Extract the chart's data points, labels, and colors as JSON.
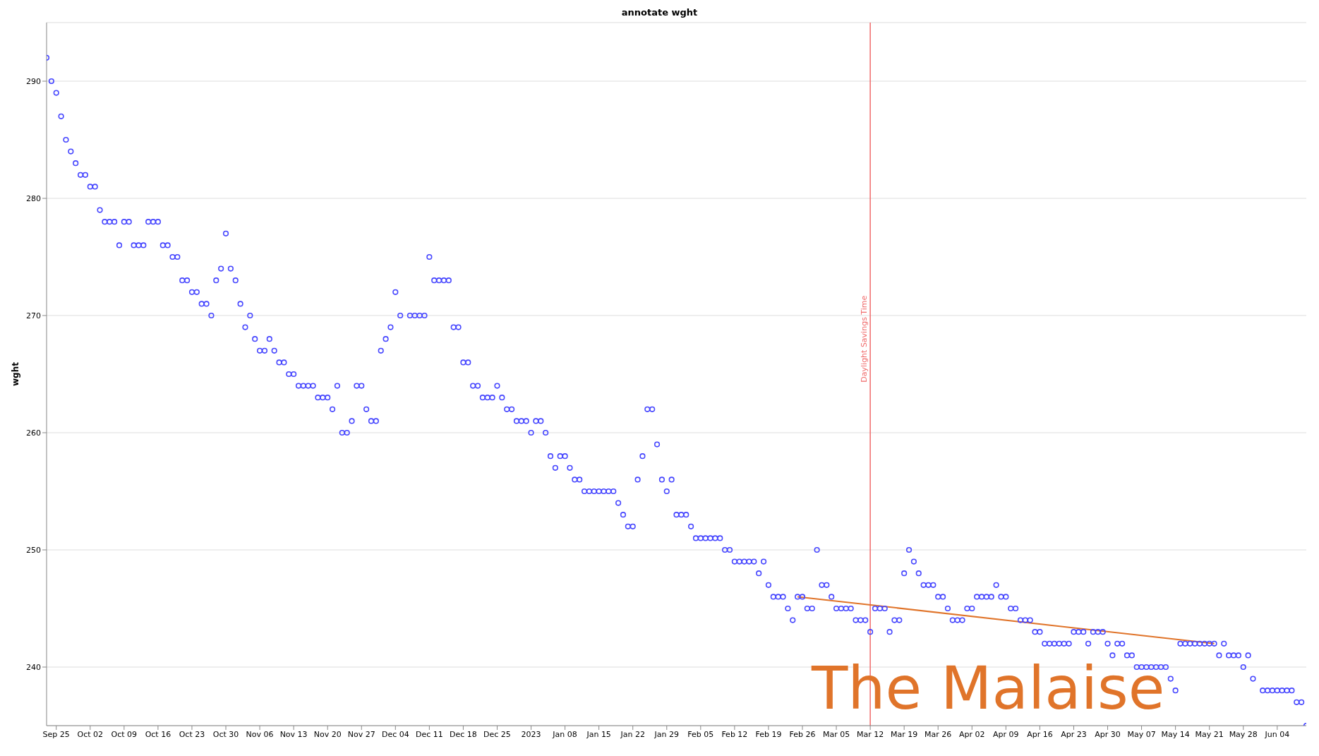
{
  "chart_data": {
    "type": "scatter",
    "title": "annotate wght",
    "ylabel": "wght",
    "x": [
      "2022-09-23",
      "2022-09-24",
      "2022-09-25",
      "2022-09-26",
      "2022-09-27",
      "2022-09-28",
      "2022-09-29",
      "2022-09-30",
      "2022-10-01",
      "2022-10-02",
      "2022-10-03",
      "2022-10-04",
      "2022-10-05",
      "2022-10-06",
      "2022-10-07",
      "2022-10-08",
      "2022-10-09",
      "2022-10-10",
      "2022-10-11",
      "2022-10-12",
      "2022-10-13",
      "2022-10-14",
      "2022-10-15",
      "2022-10-16",
      "2022-10-17",
      "2022-10-18",
      "2022-10-19",
      "2022-10-20",
      "2022-10-21",
      "2022-10-22",
      "2022-10-23",
      "2022-10-24",
      "2022-10-25",
      "2022-10-26",
      "2022-10-27",
      "2022-10-28",
      "2022-10-29",
      "2022-10-30",
      "2022-10-31",
      "2022-11-01",
      "2022-11-02",
      "2022-11-03",
      "2022-11-04",
      "2022-11-05",
      "2022-11-06",
      "2022-11-07",
      "2022-11-08",
      "2022-11-09",
      "2022-11-10",
      "2022-11-11",
      "2022-11-12",
      "2022-11-13",
      "2022-11-14",
      "2022-11-15",
      "2022-11-16",
      "2022-11-17",
      "2022-11-18",
      "2022-11-19",
      "2022-11-20",
      "2022-11-21",
      "2022-11-22",
      "2022-11-23",
      "2022-11-24",
      "2022-11-25",
      "2022-11-26",
      "2022-11-27",
      "2022-11-28",
      "2022-11-29",
      "2022-11-30",
      "2022-12-01",
      "2022-12-02",
      "2022-12-03",
      "2022-12-04",
      "2022-12-05",
      "2022-12-06",
      "2022-12-07",
      "2022-12-08",
      "2022-12-09",
      "2022-12-10",
      "2022-12-11",
      "2022-12-12",
      "2022-12-13",
      "2022-12-14",
      "2022-12-15",
      "2022-12-16",
      "2022-12-17",
      "2022-12-18",
      "2022-12-19",
      "2022-12-20",
      "2022-12-21",
      "2022-12-22",
      "2022-12-23",
      "2022-12-24",
      "2022-12-25",
      "2022-12-26",
      "2022-12-27",
      "2022-12-28",
      "2022-12-29",
      "2022-12-30",
      "2022-12-31",
      "2023-01-01",
      "2023-01-02",
      "2023-01-03",
      "2023-01-04",
      "2023-01-05",
      "2023-01-06",
      "2023-01-07",
      "2023-01-08",
      "2023-01-09",
      "2023-01-10",
      "2023-01-11",
      "2023-01-12",
      "2023-01-13",
      "2023-01-14",
      "2023-01-15",
      "2023-01-16",
      "2023-01-17",
      "2023-01-18",
      "2023-01-19",
      "2023-01-20",
      "2023-01-21",
      "2023-01-22",
      "2023-01-23",
      "2023-01-24",
      "2023-01-25",
      "2023-01-26",
      "2023-01-27",
      "2023-01-28",
      "2023-01-29",
      "2023-01-30",
      "2023-01-31",
      "2023-02-01",
      "2023-02-02",
      "2023-02-03",
      "2023-02-04",
      "2023-02-05",
      "2023-02-06",
      "2023-02-07",
      "2023-02-08",
      "2023-02-09",
      "2023-02-10",
      "2023-02-11",
      "2023-02-12",
      "2023-02-13",
      "2023-02-14",
      "2023-02-15",
      "2023-02-16",
      "2023-02-17",
      "2023-02-18",
      "2023-02-19",
      "2023-02-20",
      "2023-02-21",
      "2023-02-22",
      "2023-02-23",
      "2023-02-24",
      "2023-02-25",
      "2023-02-26",
      "2023-02-27",
      "2023-02-28",
      "2023-03-01",
      "2023-03-02",
      "2023-03-03",
      "2023-03-04",
      "2023-03-05",
      "2023-03-06",
      "2023-03-07",
      "2023-03-08",
      "2023-03-09",
      "2023-03-10",
      "2023-03-11",
      "2023-03-12",
      "2023-03-13",
      "2023-03-14",
      "2023-03-15",
      "2023-03-16",
      "2023-03-17",
      "2023-03-18",
      "2023-03-19",
      "2023-03-20",
      "2023-03-21",
      "2023-03-22",
      "2023-03-23",
      "2023-03-24",
      "2023-03-25",
      "2023-03-26",
      "2023-03-27",
      "2023-03-28",
      "2023-03-29",
      "2023-03-30",
      "2023-03-31",
      "2023-04-01",
      "2023-04-02",
      "2023-04-03",
      "2023-04-04",
      "2023-04-05",
      "2023-04-06",
      "2023-04-07",
      "2023-04-08",
      "2023-04-09",
      "2023-04-10",
      "2023-04-11",
      "2023-04-12",
      "2023-04-13",
      "2023-04-14",
      "2023-04-15",
      "2023-04-16",
      "2023-04-17",
      "2023-04-18",
      "2023-04-19",
      "2023-04-20",
      "2023-04-21",
      "2023-04-22",
      "2023-04-23",
      "2023-04-24",
      "2023-04-25",
      "2023-04-26",
      "2023-04-27",
      "2023-04-28",
      "2023-04-29",
      "2023-04-30",
      "2023-05-01",
      "2023-05-02",
      "2023-05-03",
      "2023-05-04",
      "2023-05-05",
      "2023-05-06",
      "2023-05-07",
      "2023-05-08",
      "2023-05-09",
      "2023-05-10",
      "2023-05-11",
      "2023-05-12",
      "2023-05-13",
      "2023-05-14",
      "2023-05-15",
      "2023-05-16",
      "2023-05-17",
      "2023-05-18",
      "2023-05-19",
      "2023-05-20",
      "2023-05-21",
      "2023-05-22",
      "2023-05-23",
      "2023-05-24",
      "2023-05-25",
      "2023-05-26",
      "2023-05-27",
      "2023-05-28",
      "2023-05-29",
      "2023-05-30",
      "2023-05-31",
      "2023-06-01",
      "2023-06-02",
      "2023-06-03",
      "2023-06-04",
      "2023-06-05",
      "2023-06-06",
      "2023-06-07",
      "2023-06-08",
      "2023-06-09",
      "2023-06-10"
    ],
    "series": [
      {
        "color": "#4646ff",
        "marker": "circle",
        "values": [
          292,
          290,
          289,
          287,
          285,
          284,
          283,
          282,
          282,
          281,
          281,
          279,
          278,
          278,
          278,
          276,
          278,
          278,
          276,
          276,
          276,
          278,
          278,
          278,
          276,
          276,
          275,
          275,
          273,
          273,
          272,
          272,
          271,
          271,
          270,
          273,
          274,
          277,
          274,
          273,
          271,
          269,
          270,
          268,
          267,
          267,
          268,
          267,
          266,
          266,
          265,
          265,
          264,
          264,
          264,
          264,
          263,
          263,
          263,
          262,
          264,
          260,
          260,
          261,
          264,
          264,
          262,
          261,
          261,
          267,
          268,
          269,
          272,
          270,
          null,
          270,
          270,
          270,
          270,
          275,
          273,
          273,
          273,
          273,
          269,
          269,
          266,
          266,
          264,
          264,
          263,
          263,
          263,
          264,
          263,
          262,
          262,
          261,
          261,
          261,
          260,
          261,
          261,
          260,
          258,
          257,
          258,
          258,
          257,
          256,
          256,
          255,
          255,
          255,
          255,
          255,
          255,
          255,
          254,
          253,
          252,
          252,
          256,
          258,
          262,
          262,
          259,
          256,
          255,
          256,
          253,
          253,
          253,
          252,
          251,
          251,
          251,
          251,
          251,
          251,
          250,
          250,
          249,
          249,
          249,
          249,
          249,
          248,
          249,
          247,
          246,
          246,
          246,
          245,
          244,
          246,
          246,
          245,
          245,
          250,
          247,
          247,
          246,
          245,
          245,
          245,
          245,
          244,
          244,
          244,
          243,
          245,
          245,
          245,
          243,
          244,
          244,
          248,
          250,
          249,
          248,
          247,
          247,
          247,
          246,
          246,
          245,
          244,
          244,
          244,
          245,
          245,
          246,
          246,
          246,
          246,
          247,
          246,
          246,
          245,
          245,
          244,
          244,
          244,
          243,
          243,
          242,
          242,
          242,
          242,
          242,
          242,
          243,
          243,
          243,
          242,
          243,
          243,
          243,
          242,
          241,
          242,
          242,
          241,
          241,
          240,
          240,
          240,
          240,
          240,
          240,
          240,
          239,
          238,
          242,
          242,
          242,
          242,
          242,
          242,
          242,
          242,
          241,
          242,
          241,
          241,
          241,
          240,
          241,
          239,
          null,
          238,
          238,
          238,
          238,
          238,
          238,
          238,
          237,
          237,
          235
        ]
      },
      {
        "type": "line",
        "color": "#e0742a",
        "x": [
          "2023-02-25",
          "2023-05-22"
        ],
        "values": [
          246.0,
          242.0
        ]
      }
    ],
    "xlim": [
      "2022-09-23",
      "2023-06-10"
    ],
    "xticks": [
      {
        "value": "2022-09-25",
        "label": "Sep 25"
      },
      {
        "value": "2022-10-02",
        "label": "Oct 02"
      },
      {
        "value": "2022-10-09",
        "label": "Oct 09"
      },
      {
        "value": "2022-10-16",
        "label": "Oct 16"
      },
      {
        "value": "2022-10-23",
        "label": "Oct 23"
      },
      {
        "value": "2022-10-30",
        "label": "Oct 30"
      },
      {
        "value": "2022-11-06",
        "label": "Nov 06"
      },
      {
        "value": "2022-11-13",
        "label": "Nov 13"
      },
      {
        "value": "2022-11-20",
        "label": "Nov 20"
      },
      {
        "value": "2022-11-27",
        "label": "Nov 27"
      },
      {
        "value": "2022-12-04",
        "label": "Dec 04"
      },
      {
        "value": "2022-12-11",
        "label": "Dec 11"
      },
      {
        "value": "2022-12-18",
        "label": "Dec 18"
      },
      {
        "value": "2022-12-25",
        "label": "Dec 25"
      },
      {
        "value": "2023-01-01",
        "label": "2023"
      },
      {
        "value": "2023-01-08",
        "label": "Jan 08"
      },
      {
        "value": "2023-01-15",
        "label": "Jan 15"
      },
      {
        "value": "2023-01-22",
        "label": "Jan 22"
      },
      {
        "value": "2023-01-29",
        "label": "Jan 29"
      },
      {
        "value": "2023-02-05",
        "label": "Feb 05"
      },
      {
        "value": "2023-02-12",
        "label": "Feb 12"
      },
      {
        "value": "2023-02-19",
        "label": "Feb 19"
      },
      {
        "value": "2023-02-26",
        "label": "Feb 26"
      },
      {
        "value": "2023-03-05",
        "label": "Mar 05"
      },
      {
        "value": "2023-03-12",
        "label": "Mar 12"
      },
      {
        "value": "2023-03-19",
        "label": "Mar 19"
      },
      {
        "value": "2023-03-26",
        "label": "Mar 26"
      },
      {
        "value": "2023-04-02",
        "label": "Apr 02"
      },
      {
        "value": "2023-04-09",
        "label": "Apr 09"
      },
      {
        "value": "2023-04-16",
        "label": "Apr 16"
      },
      {
        "value": "2023-04-23",
        "label": "Apr 23"
      },
      {
        "value": "2023-04-30",
        "label": "Apr 30"
      },
      {
        "value": "2023-05-07",
        "label": "May 07"
      },
      {
        "value": "2023-05-14",
        "label": "May 14"
      },
      {
        "value": "2023-05-21",
        "label": "May 21"
      },
      {
        "value": "2023-05-28",
        "label": "May 28"
      },
      {
        "value": "2023-06-04",
        "label": "Jun 04"
      }
    ],
    "ylim": [
      235,
      295
    ],
    "yticks": [
      240,
      250,
      260,
      270,
      280,
      290
    ],
    "grid": "y",
    "line_style": "solid",
    "ref_lines": [
      {
        "axis": "x",
        "value": "2023-03-12",
        "label": "Daylight Savings Time",
        "color": "#f06a6a"
      }
    ],
    "annotations": [
      "The Malaise"
    ]
  }
}
